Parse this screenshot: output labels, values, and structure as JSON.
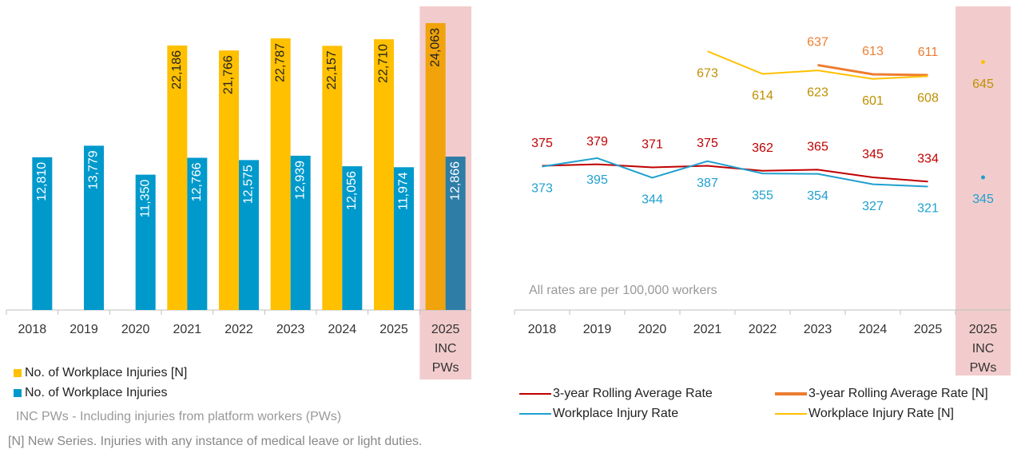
{
  "chart_data": [
    {
      "type": "bar",
      "categories": [
        "2018",
        "2019",
        "2020",
        "2021",
        "2022",
        "2023",
        "2024",
        "2025",
        "2025\nINC\nPWs"
      ],
      "highlight_index": 8,
      "ylim": [
        0,
        26000
      ],
      "series": [
        {
          "name": "No. of Workplace Injuries [N]",
          "color": "#FFC000",
          "highlight_color": "#F0A30A",
          "label_color": "#222222",
          "values": [
            null,
            null,
            null,
            22186,
            21766,
            22787,
            22157,
            22710,
            24063
          ],
          "value_labels": [
            null,
            null,
            null,
            "22,186",
            "21,766",
            "22,787",
            "22,157",
            "22,710",
            "24,063"
          ]
        },
        {
          "name": "No. of Workplace Injuries",
          "color": "#0099CC",
          "highlight_color": "#2E7DA6",
          "label_color": "#ffffff",
          "values": [
            12810,
            13779,
            11350,
            12766,
            12575,
            12939,
            12056,
            11974,
            12866
          ],
          "value_labels": [
            "12,810",
            "13,779",
            "11,350",
            "12,766",
            "12,575",
            "12,939",
            "12,056",
            "11,974",
            "12,866"
          ]
        }
      ]
    },
    {
      "type": "line",
      "categories": [
        "2018",
        "2019",
        "2020",
        "2021",
        "2022",
        "2023",
        "2024",
        "2025",
        "2025\nINC\nPWs"
      ],
      "highlight_index": 8,
      "ylim": [
        0,
        800
      ],
      "annotation": "All rates are per 100,000 workers",
      "series": [
        {
          "name": "3-year Rolling Average Rate",
          "color": "#C00000",
          "label_color": "#C00000",
          "label_position": "above",
          "values": [
            375,
            379,
            371,
            375,
            362,
            365,
            345,
            334,
            null
          ]
        },
        {
          "name": "3-year Rolling Average Rate [N]",
          "color": "#ED7D31",
          "label_color": "#ED7D31",
          "label_position": "above",
          "values": [
            null,
            null,
            null,
            null,
            null,
            637,
            613,
            611,
            null
          ]
        },
        {
          "name": "Workplace Injury Rate",
          "color": "#1FA0D0",
          "label_color": "#1FA0D0",
          "label_position": "below",
          "values": [
            373,
            395,
            344,
            387,
            355,
            354,
            327,
            321,
            345
          ]
        },
        {
          "name": "Workplace Injury Rate [N]",
          "color": "#FFC000",
          "label_color": "#BF9000",
          "label_position": "below",
          "values": [
            null,
            null,
            null,
            673,
            614,
            623,
            601,
            608,
            645
          ]
        }
      ]
    }
  ],
  "notes": [
    "INC PWs - Including injuries from platform workers (PWs)",
    "[N] New Series. Injuries with any instance of medical leave or light duties."
  ]
}
